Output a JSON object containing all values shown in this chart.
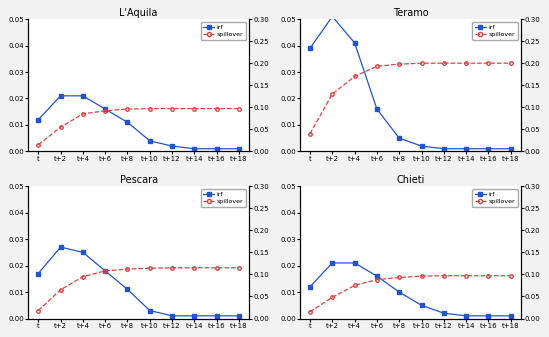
{
  "titles": [
    "L'Aquila",
    "Teramo",
    "Pescara",
    "Chieti"
  ],
  "x_labels": [
    "t",
    "t+2",
    "t+4",
    "t+6",
    "t+8",
    "t+10",
    "t+12",
    "t+14",
    "t+16",
    "t+18"
  ],
  "x_values": [
    0,
    1,
    2,
    3,
    4,
    5,
    6,
    7,
    8,
    9
  ],
  "irf": {
    "LAquila": [
      0.012,
      0.021,
      0.021,
      0.016,
      0.011,
      0.004,
      0.002,
      0.001,
      0.001,
      0.001
    ],
    "Teramo": [
      0.039,
      0.051,
      0.041,
      0.016,
      0.005,
      0.002,
      0.001,
      0.001,
      0.001,
      0.001
    ],
    "Pescara": [
      0.017,
      0.027,
      0.025,
      0.018,
      0.011,
      0.003,
      0.001,
      0.001,
      0.001,
      0.001
    ],
    "Chieti": [
      0.012,
      0.021,
      0.021,
      0.016,
      0.01,
      0.005,
      0.002,
      0.001,
      0.001,
      0.001
    ]
  },
  "spillover": {
    "LAquila": [
      0.015,
      0.055,
      0.085,
      0.092,
      0.096,
      0.097,
      0.097,
      0.097,
      0.097,
      0.097
    ],
    "Teramo": [
      0.04,
      0.13,
      0.17,
      0.193,
      0.198,
      0.2,
      0.2,
      0.2,
      0.2,
      0.2
    ],
    "Pescara": [
      0.018,
      0.065,
      0.095,
      0.108,
      0.112,
      0.114,
      0.115,
      0.115,
      0.115,
      0.115
    ],
    "Chieti": [
      0.015,
      0.048,
      0.075,
      0.088,
      0.093,
      0.096,
      0.097,
      0.097,
      0.097,
      0.097
    ]
  },
  "irf_color": "#2255cc",
  "spillover_color": "#dd4444",
  "irf_ylim": [
    0.0,
    0.05
  ],
  "irf_yticks": [
    0.0,
    0.01,
    0.02,
    0.03,
    0.04,
    0.05
  ],
  "spillover_ylim": [
    0.0,
    0.3
  ],
  "spillover_yticks": [
    0.0,
    0.05,
    0.1,
    0.15,
    0.2,
    0.25,
    0.3
  ],
  "bg_color": "#ffffff",
  "fig_bg": "#f2f2f2"
}
